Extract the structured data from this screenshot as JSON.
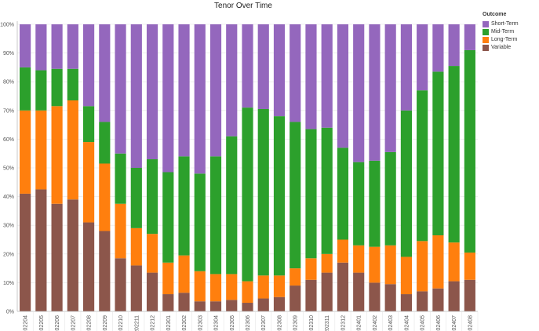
{
  "chart_data": {
    "type": "bar",
    "stacked": true,
    "title": "Tenor Over Time",
    "xlabel": "",
    "ylabel": "",
    "ylim": [
      0,
      100
    ],
    "yticks": [
      "0%",
      "10%",
      "20%",
      "30%",
      "40%",
      "50%",
      "60%",
      "70%",
      "80%",
      "90%",
      "100%"
    ],
    "categories": [
      "202204",
      "202205",
      "202206",
      "202207",
      "202208",
      "202209",
      "202210",
      "202211",
      "202212",
      "202301",
      "202302",
      "202303",
      "202304",
      "202305",
      "202306",
      "202307",
      "202308",
      "202309",
      "202310",
      "202311",
      "202312",
      "202401",
      "202402",
      "202403",
      "202404",
      "202405",
      "202406",
      "202407",
      "202408"
    ],
    "legend": {
      "title": "Outcome",
      "position": "right"
    },
    "series": [
      {
        "name": "Variable",
        "color": "#8c564b",
        "values": [
          41,
          42.5,
          37.5,
          39,
          31,
          28,
          18.5,
          16,
          13.5,
          6,
          6.5,
          3.5,
          3.5,
          4,
          3,
          4.5,
          5,
          9,
          11,
          13.5,
          17,
          13.5,
          10,
          9.5,
          6,
          7,
          8,
          10.5,
          11
        ]
      },
      {
        "name": "Long-Term",
        "color": "#ff7f0e",
        "values": [
          29,
          27.5,
          34,
          34.5,
          28,
          23.5,
          19,
          13,
          13.5,
          11,
          13,
          10.5,
          9.5,
          9,
          7.5,
          8,
          7.5,
          6,
          7.5,
          6.5,
          8,
          9.5,
          12.5,
          13.5,
          13,
          17.5,
          18.5,
          13.5,
          9.5
        ]
      },
      {
        "name": "Mid-Term",
        "color": "#2ca02c",
        "values": [
          15,
          14,
          13,
          11,
          12.5,
          14.5,
          17.5,
          21,
          26,
          31.5,
          34.5,
          34,
          41,
          48,
          60.5,
          58,
          55.5,
          51,
          45,
          44,
          32,
          29,
          30,
          32.5,
          51,
          52.5,
          57,
          61.5,
          70.5
        ]
      },
      {
        "name": "Short-Term",
        "color": "#9467bd",
        "values": [
          15,
          16,
          15.5,
          15.5,
          28.5,
          34,
          45,
          50,
          47,
          51.5,
          46,
          52,
          46,
          39,
          29,
          29.5,
          32,
          34,
          36.5,
          36,
          43,
          48,
          47.5,
          44.5,
          30,
          23,
          16.5,
          14.5,
          9
        ]
      }
    ],
    "legend_order": [
      "Short-Term",
      "Mid-Term",
      "Long-Term",
      "Variable"
    ]
  }
}
